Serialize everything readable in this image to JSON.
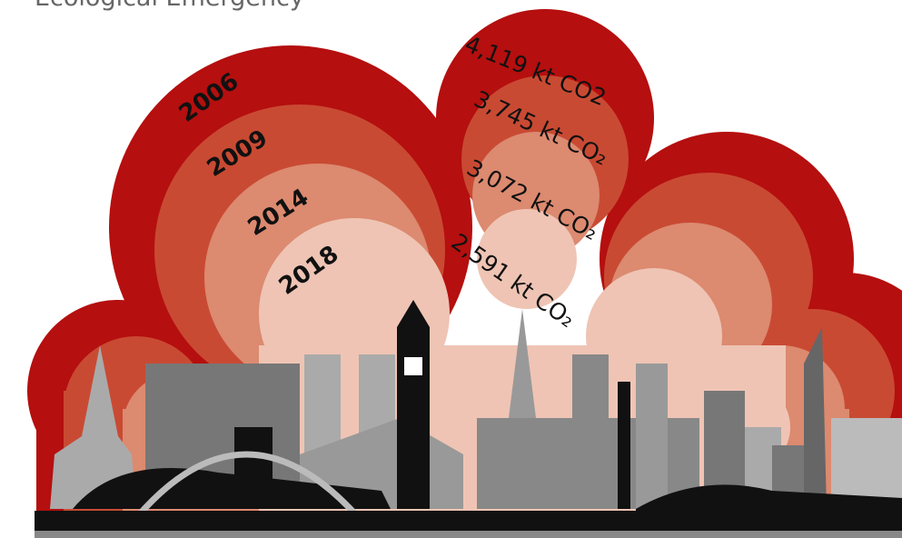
{
  "header": {
    "title": "Ecological Emergency"
  },
  "layers": [
    {
      "year": "2006",
      "emissions": "4,119 kt CO2"
    },
    {
      "year": "2009",
      "emissions": "3,745 kt CO₂"
    },
    {
      "year": "2014",
      "emissions": "3,072 kt CO₂"
    },
    {
      "year": "2018",
      "emissions": "2,591 kt CO₂"
    }
  ]
}
